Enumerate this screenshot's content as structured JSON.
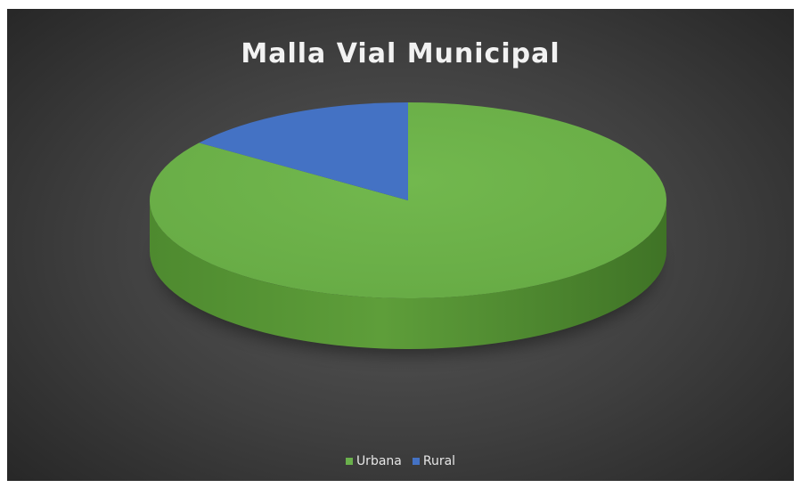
{
  "chart_data": {
    "type": "pie",
    "title": "Malla Vial Municipal",
    "style": "3d",
    "legend_position": "bottom",
    "slices": [
      {
        "label": "Urbana",
        "value": 85,
        "color": "#6ab04c"
      },
      {
        "label": "Rural",
        "value": 15,
        "color": "#4472c4"
      }
    ]
  }
}
